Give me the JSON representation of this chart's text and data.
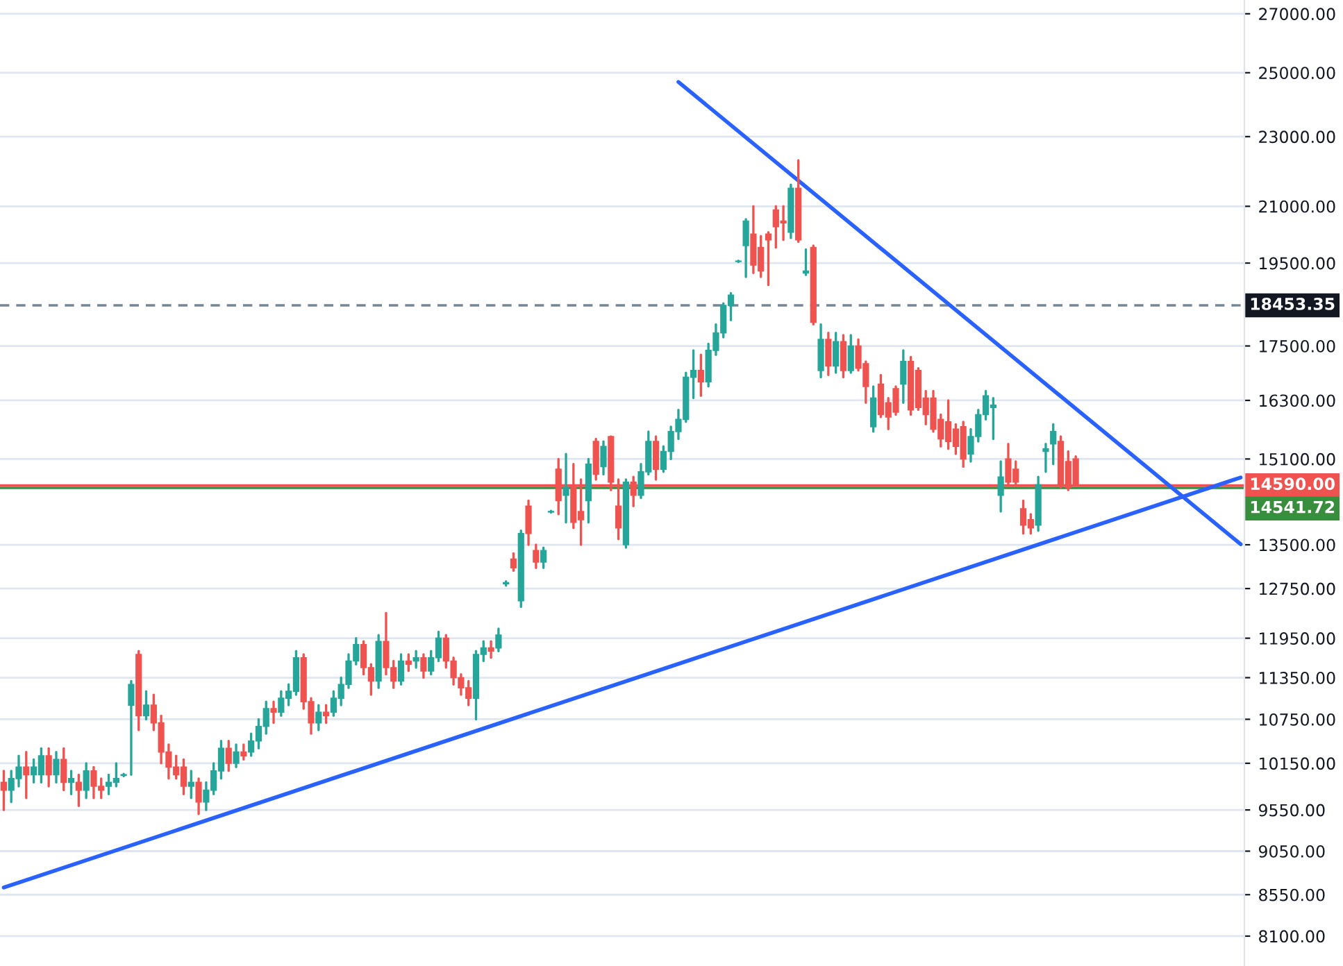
{
  "chart_data": {
    "type": "candlestick",
    "categories": [
      null,
      null,
      null,
      null,
      null,
      null,
      null,
      null,
      null,
      null,
      null,
      null,
      null,
      null,
      null,
      null,
      null,
      null,
      null,
      null,
      null,
      null,
      null,
      null,
      null,
      null,
      null,
      null,
      null,
      null,
      null,
      null,
      null,
      null,
      null,
      null,
      null,
      null,
      null,
      null,
      null,
      null,
      null,
      null,
      null,
      null,
      null,
      null,
      null,
      null,
      null,
      null,
      null,
      null,
      null,
      null,
      null,
      null,
      null,
      null,
      null,
      null,
      null,
      null,
      null,
      null,
      null,
      null,
      null,
      null,
      null,
      null,
      null,
      null,
      null,
      null,
      null,
      null,
      null,
      null,
      null,
      null,
      null,
      null,
      null,
      null,
      null,
      null,
      null,
      null,
      null,
      null,
      null,
      null,
      null,
      null,
      null,
      null,
      null,
      null,
      null,
      null,
      null,
      null,
      null,
      null,
      null,
      null,
      null,
      null,
      null,
      null,
      null,
      null,
      null,
      null,
      null,
      null,
      null,
      null,
      null,
      null,
      null,
      null,
      null,
      null,
      null,
      null,
      null,
      null,
      null,
      null,
      null,
      null,
      null,
      null,
      null,
      null,
      null,
      null,
      null,
      null,
      null,
      null,
      null,
      null,
      null,
      null,
      null,
      null,
      null,
      null,
      null,
      null,
      null,
      null,
      null,
      null,
      null,
      null,
      null,
      null,
      null,
      null,
      null,
      null
    ],
    "ohlc": [
      [
        9900,
        10050,
        9550,
        9800
      ],
      [
        9800,
        10050,
        9650,
        9950
      ],
      [
        9950,
        10250,
        9850,
        10100
      ],
      [
        10100,
        10300,
        9700,
        10000
      ],
      [
        10000,
        10200,
        9900,
        10100
      ],
      [
        10000,
        10350,
        9900,
        10250
      ],
      [
        10250,
        10350,
        9850,
        10000
      ],
      [
        10000,
        10300,
        9900,
        10200
      ],
      [
        10200,
        10350,
        9800,
        9900
      ],
      [
        9900,
        10050,
        9750,
        9950
      ],
      [
        9900,
        10000,
        9600,
        9800
      ],
      [
        9800,
        10150,
        9700,
        10050
      ],
      [
        10050,
        10100,
        9700,
        9850
      ],
      [
        9850,
        9950,
        9700,
        9800
      ],
      [
        9850,
        10000,
        9750,
        9900
      ],
      [
        9900,
        10150,
        9850,
        9950
      ],
      [
        9990,
        10010,
        9980,
        10000
      ],
      [
        10950,
        11300,
        10000,
        11250
      ],
      [
        11700,
        11750,
        10600,
        10800
      ],
      [
        10800,
        11150,
        10750,
        10950
      ],
      [
        10950,
        11100,
        10600,
        10700
      ],
      [
        10700,
        10800,
        10150,
        10300
      ],
      [
        10300,
        10400,
        9950,
        10100
      ],
      [
        10100,
        10250,
        9950,
        10000
      ],
      [
        10100,
        10200,
        9750,
        9850
      ],
      [
        9850,
        10050,
        9700,
        9900
      ],
      [
        9900,
        9950,
        9500,
        9650
      ],
      [
        9650,
        9900,
        9550,
        9800
      ],
      [
        9800,
        10150,
        9750,
        10050
      ],
      [
        10050,
        10450,
        9950,
        10350
      ],
      [
        10350,
        10450,
        10050,
        10150
      ],
      [
        10150,
        10400,
        10100,
        10300
      ],
      [
        10300,
        10400,
        10200,
        10250
      ],
      [
        10300,
        10550,
        10250,
        10450
      ],
      [
        10450,
        10750,
        10350,
        10650
      ],
      [
        10650,
        11000,
        10550,
        10900
      ],
      [
        10900,
        11000,
        10700,
        10850
      ],
      [
        10850,
        11150,
        10800,
        11050
      ],
      [
        11050,
        11250,
        10950,
        11150
      ],
      [
        11150,
        11750,
        11100,
        11650
      ],
      [
        11650,
        11700,
        10900,
        11000
      ],
      [
        11000,
        11050,
        10550,
        10700
      ],
      [
        10700,
        10950,
        10600,
        10850
      ],
      [
        10850,
        10950,
        10700,
        10800
      ],
      [
        10850,
        11150,
        10800,
        11050
      ],
      [
        11050,
        11350,
        10950,
        11250
      ],
      [
        11250,
        11700,
        11200,
        11600
      ],
      [
        11600,
        11950,
        11550,
        11850
      ],
      [
        11850,
        11900,
        11400,
        11500
      ],
      [
        11500,
        11550,
        11100,
        11300
      ],
      [
        11300,
        12000,
        11200,
        11900
      ],
      [
        11900,
        12350,
        11400,
        11500
      ],
      [
        11500,
        11600,
        11200,
        11300
      ],
      [
        11300,
        11700,
        11250,
        11600
      ],
      [
        11600,
        11700,
        11450,
        11550
      ],
      [
        11600,
        11750,
        11500,
        11650
      ],
      [
        11650,
        11700,
        11350,
        11450
      ],
      [
        11450,
        11750,
        11400,
        11650
      ],
      [
        11650,
        12050,
        11600,
        11950
      ],
      [
        11950,
        12000,
        11500,
        11600
      ],
      [
        11600,
        11650,
        11250,
        11350
      ],
      [
        11350,
        11400,
        11100,
        11200
      ],
      [
        11200,
        11300,
        10950,
        11050
      ],
      [
        11050,
        11750,
        10750,
        11700
      ],
      [
        11700,
        11900,
        11600,
        11800
      ],
      [
        11800,
        11900,
        11650,
        11750
      ],
      [
        11800,
        12100,
        11750,
        12000
      ],
      [
        12830,
        12870,
        12800,
        12850
      ],
      [
        13250,
        13350,
        13050,
        13100
      ],
      [
        12550,
        13750,
        12450,
        13700
      ],
      [
        14200,
        14300,
        13500,
        13700
      ],
      [
        13400,
        13500,
        13100,
        13200
      ],
      [
        13200,
        13450,
        13100,
        13400
      ],
      [
        14090,
        14110,
        14080,
        14100
      ],
      [
        14900,
        15100,
        14050,
        14300
      ],
      [
        14400,
        15200,
        13900,
        14550
      ],
      [
        14550,
        15000,
        13800,
        13900
      ],
      [
        14100,
        14700,
        13500,
        13950
      ],
      [
        14300,
        15100,
        13900,
        15000
      ],
      [
        15450,
        15500,
        14700,
        14800
      ],
      [
        14950,
        15450,
        14800,
        15350
      ],
      [
        15550,
        15550,
        14500,
        14650
      ],
      [
        14200,
        14700,
        13600,
        13800
      ],
      [
        13500,
        14700,
        13450,
        14650
      ],
      [
        14650,
        14750,
        14200,
        14400
      ],
      [
        14400,
        15000,
        14350,
        14850
      ],
      [
        14850,
        15650,
        14800,
        15450
      ],
      [
        15450,
        15550,
        14700,
        14900
      ],
      [
        14900,
        15350,
        14850,
        15250
      ],
      [
        15250,
        15750,
        15100,
        15650
      ],
      [
        15650,
        16100,
        15500,
        15900
      ],
      [
        15900,
        16900,
        15850,
        16800
      ],
      [
        16800,
        17400,
        16350,
        16950
      ],
      [
        16950,
        17300,
        16400,
        16700
      ],
      [
        16700,
        17550,
        16600,
        17400
      ],
      [
        17400,
        18000,
        17300,
        17800
      ],
      [
        17800,
        18500,
        17700,
        18450
      ],
      [
        18450,
        18750,
        18100,
        18700
      ],
      [
        19540,
        19560,
        19530,
        19550
      ],
      [
        19950,
        20650,
        19150,
        20600
      ],
      [
        20250,
        21000,
        19250,
        19450
      ],
      [
        19900,
        20200,
        19150,
        19300
      ],
      [
        20250,
        20300,
        18950,
        20100
      ],
      [
        20900,
        21000,
        19900,
        20450
      ],
      [
        20600,
        21000,
        20100,
        20550
      ],
      [
        20300,
        21600,
        20150,
        21500
      ],
      [
        21500,
        22300,
        20050,
        20100
      ],
      [
        19250,
        19850,
        19200,
        19300
      ],
      [
        19900,
        19950,
        18000,
        18050
      ],
      [
        16950,
        18000,
        16800,
        17650
      ],
      [
        17650,
        17800,
        16850,
        17050
      ],
      [
        17050,
        17800,
        16900,
        17600
      ],
      [
        17600,
        17750,
        16800,
        16950
      ],
      [
        16950,
        17750,
        16900,
        17500
      ],
      [
        17500,
        17650,
        16950,
        17000
      ],
      [
        17100,
        17150,
        16250,
        16600
      ],
      [
        15750,
        16600,
        15650,
        16350
      ],
      [
        16650,
        16850,
        15950,
        16000
      ],
      [
        16250,
        16350,
        15700,
        15950
      ],
      [
        16550,
        16600,
        16000,
        16050
      ],
      [
        16650,
        17400,
        16250,
        17150
      ],
      [
        17150,
        17250,
        16000,
        16100
      ],
      [
        16950,
        17000,
        16100,
        16150
      ],
      [
        16350,
        16500,
        15800,
        16000
      ],
      [
        16350,
        16500,
        15650,
        15700
      ],
      [
        15900,
        16000,
        15350,
        15500
      ],
      [
        15850,
        16300,
        15300,
        15450
      ],
      [
        15700,
        15800,
        15200,
        15350
      ],
      [
        15750,
        15850,
        14950,
        15100
      ],
      [
        15200,
        15700,
        15050,
        15550
      ],
      [
        15550,
        16100,
        15450,
        16000
      ],
      [
        16000,
        16500,
        15900,
        16400
      ],
      [
        16150,
        16350,
        15500,
        16200
      ],
      [
        14400,
        15050,
        14100,
        14750
      ],
      [
        15100,
        15400,
        14600,
        14650
      ],
      [
        14900,
        15050,
        14600,
        14650
      ],
      [
        14150,
        14300,
        13700,
        13850
      ],
      [
        13950,
        14050,
        13700,
        13800
      ],
      [
        13850,
        14750,
        13750,
        14600
      ],
      [
        15250,
        15400,
        14850,
        15300
      ],
      [
        15400,
        15800,
        15000,
        15650
      ],
      [
        15450,
        15550,
        14550,
        14600
      ],
      [
        15050,
        15250,
        14500,
        14550
      ],
      [
        15100,
        15150,
        14600,
        14600
      ],
      null,
      null,
      null,
      null,
      null,
      null,
      null,
      null,
      null,
      null,
      null,
      null,
      null,
      null,
      null,
      null,
      null,
      null,
      null,
      null,
      null,
      null
    ],
    "colors": [
      "#ef5350",
      "#26a69a",
      "#26a69a",
      "#ef5350",
      "#26a69a",
      "#26a69a",
      "#ef5350",
      "#26a69a",
      "#ef5350",
      "#26a69a",
      "#ef5350",
      "#26a69a",
      "#ef5350",
      "#ef5350",
      "#26a69a",
      "#26a69a",
      "#26a69a",
      "#26a69a",
      "#ef5350",
      "#26a69a",
      "#ef5350",
      "#ef5350",
      "#ef5350",
      "#ef5350",
      "#ef5350",
      "#26a69a",
      "#ef5350",
      "#26a69a",
      "#26a69a",
      "#26a69a",
      "#ef5350",
      "#26a69a",
      "#ef5350",
      "#26a69a",
      "#26a69a",
      "#26a69a",
      "#ef5350",
      "#26a69a",
      "#26a69a",
      "#26a69a",
      "#ef5350",
      "#ef5350",
      "#26a69a",
      "#ef5350",
      "#26a69a",
      "#26a69a",
      "#26a69a",
      "#26a69a",
      "#ef5350",
      "#ef5350",
      "#26a69a",
      "#ef5350",
      "#ef5350",
      "#26a69a",
      "#ef5350",
      "#26a69a",
      "#ef5350",
      "#26a69a",
      "#26a69a",
      "#ef5350",
      "#ef5350",
      "#ef5350",
      "#ef5350",
      "#26a69a",
      "#26a69a",
      "#ef5350",
      "#26a69a",
      "#26a69a",
      "#ef5350",
      "#26a69a",
      "#ef5350",
      "#ef5350",
      "#26a69a",
      "#26a69a",
      "#ef5350",
      "#26a69a",
      "#ef5350",
      "#ef5350",
      "#26a69a",
      "#ef5350",
      "#26a69a",
      "#ef5350",
      "#ef5350",
      "#26a69a",
      "#ef5350",
      "#26a69a",
      "#26a69a",
      "#ef5350",
      "#26a69a",
      "#26a69a",
      "#26a69a",
      "#26a69a",
      "#26a69a",
      "#ef5350",
      "#26a69a",
      "#26a69a",
      "#26a69a",
      "#26a69a",
      "#26a69a",
      "#26a69a",
      "#ef5350",
      "#ef5350",
      "#ef5350",
      "#ef5350",
      "#ef5350",
      "#26a69a",
      "#ef5350",
      "#26a69a",
      "#ef5350",
      "#26a69a",
      "#ef5350",
      "#26a69a",
      "#ef5350",
      "#26a69a",
      "#ef5350",
      "#ef5350",
      "#26a69a",
      "#ef5350",
      "#ef5350",
      "#ef5350",
      "#26a69a",
      "#ef5350",
      "#ef5350",
      "#ef5350",
      "#ef5350",
      "#ef5350",
      "#ef5350",
      "#ef5350",
      "#ef5350",
      "#26a69a",
      "#26a69a",
      "#26a69a",
      "#26a69a",
      "#26a69a",
      "#ef5350",
      "#ef5350",
      "#ef5350",
      "#ef5350",
      "#26a69a",
      "#26a69a",
      "#26a69a",
      "#ef5350",
      "#ef5350",
      "#ef5350",
      null,
      null,
      null,
      null,
      null,
      null,
      null,
      null,
      null,
      null,
      null,
      null,
      null,
      null,
      null,
      null,
      null,
      null,
      null,
      null,
      null,
      null
    ],
    "series": [
      {
        "type": "line",
        "color": "#2962ff",
        "values": [
          8630,
          null,
          null,
          null,
          null,
          null,
          null,
          null,
          null,
          null,
          null,
          null,
          null,
          null,
          null,
          null,
          null,
          null,
          null,
          null,
          null,
          null,
          null,
          null,
          null,
          null,
          null,
          null,
          null,
          null,
          null,
          null,
          null,
          null,
          null,
          null,
          null,
          null,
          null,
          null,
          null,
          null,
          null,
          null,
          null,
          null,
          null,
          null,
          null,
          null,
          null,
          null,
          null,
          null,
          null,
          null,
          null,
          null,
          null,
          null,
          null,
          null,
          null,
          null,
          null,
          null,
          null,
          null,
          null,
          null,
          null,
          null,
          null,
          null,
          null,
          null,
          null,
          null,
          null,
          null,
          null,
          null,
          null,
          null,
          null,
          null,
          null,
          null,
          null,
          null,
          null,
          null,
          null,
          null,
          null,
          null,
          null,
          null,
          null,
          null,
          null,
          null,
          null,
          null,
          null,
          null,
          null,
          null,
          null,
          null,
          null,
          null,
          null,
          null,
          null,
          null,
          null,
          null,
          null,
          null,
          null,
          null,
          null,
          null,
          null,
          null,
          null,
          null,
          null,
          null,
          null,
          null,
          null,
          null,
          null,
          null,
          null,
          null,
          null,
          null,
          null,
          null,
          null,
          null,
          null,
          null,
          null,
          null,
          null,
          null,
          null,
          null,
          null,
          null,
          null,
          null,
          null,
          null,
          null,
          null,
          null,
          null,
          null,
          null,
          null,
          14740
        ]
      },
      {
        "type": "line",
        "color": "#2962ff",
        "values": [
          null,
          null,
          null,
          null,
          null,
          null,
          null,
          null,
          null,
          null,
          null,
          null,
          null,
          null,
          null,
          null,
          null,
          null,
          null,
          null,
          null,
          null,
          null,
          null,
          null,
          null,
          null,
          null,
          null,
          null,
          null,
          null,
          null,
          null,
          null,
          null,
          null,
          null,
          null,
          null,
          null,
          null,
          null,
          null,
          null,
          null,
          null,
          null,
          null,
          null,
          null,
          null,
          null,
          null,
          null,
          null,
          null,
          null,
          null,
          null,
          null,
          null,
          null,
          null,
          null,
          null,
          null,
          null,
          null,
          null,
          null,
          null,
          null,
          null,
          null,
          null,
          null,
          null,
          null,
          null,
          null,
          null,
          null,
          null,
          null,
          null,
          null,
          null,
          null,
          null,
          24700,
          null,
          null,
          null,
          null,
          null,
          null,
          null,
          null,
          null,
          null,
          null,
          null,
          null,
          null,
          null,
          null,
          null,
          null,
          null,
          null,
          null,
          null,
          null,
          null,
          null,
          null,
          null,
          null,
          null,
          null,
          null,
          null,
          null,
          null,
          null,
          null,
          null,
          null,
          null,
          null,
          null,
          null,
          null,
          null,
          null,
          null,
          null,
          null,
          null,
          null,
          null,
          null,
          null,
          null,
          null,
          null,
          null,
          null,
          null,
          null,
          null,
          null,
          null,
          null,
          null,
          null,
          null,
          null,
          null,
          null,
          null,
          null,
          null,
          null,
          13510
        ]
      }
    ],
    "ylim": [
      7790,
      27490
    ],
    "yticks": [
      {
        "value": 8100,
        "label": "8100.00"
      },
      {
        "value": 8550,
        "label": "8550.00"
      },
      {
        "value": 9050,
        "label": "9050.00"
      },
      {
        "value": 9550,
        "label": "9550.00"
      },
      {
        "value": 10150,
        "label": "10150.00"
      },
      {
        "value": 10750,
        "label": "10750.00"
      },
      {
        "value": 11350,
        "label": "11350.00"
      },
      {
        "value": 11950,
        "label": "11950.00"
      },
      {
        "value": 12750,
        "label": "12750.00"
      },
      {
        "value": 13500,
        "label": "13500.00"
      },
      {
        "value": 15100,
        "label": "15100.00"
      },
      {
        "value": 16300,
        "label": "16300.00"
      },
      {
        "value": 17500,
        "label": "17500.00"
      },
      {
        "value": 19500,
        "label": "19500.00"
      },
      {
        "value": 21000,
        "label": "21000.00"
      },
      {
        "value": 23000,
        "label": "23000.00"
      },
      {
        "value": 25000,
        "label": "25000.00"
      },
      {
        "value": 27000,
        "label": "27000.00"
      }
    ],
    "log": "y",
    "grid": "y",
    "tick_labels": "y",
    "ref_lines": [
      {
        "axis": "y",
        "value": 18453.35,
        "label": "18453.35",
        "color": "#758696",
        "line_style": "dashed"
      },
      {
        "axis": "y",
        "value": 14590.0,
        "label": "14590.00",
        "color": "#ef5350",
        "line_style": "solid"
      },
      {
        "axis": "y",
        "value": 14541.72,
        "label": "14541.72",
        "color": "#388e3c",
        "line_style": "solid"
      }
    ]
  }
}
